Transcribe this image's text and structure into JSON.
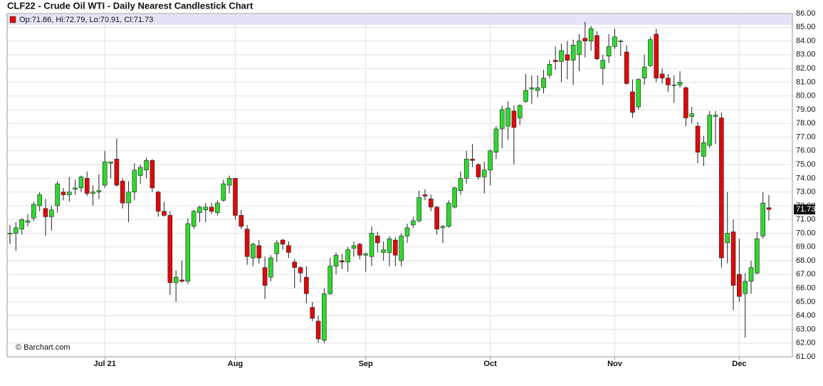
{
  "chart_data": {
    "type": "candlestick",
    "title": "CLF22 - Crude Oil WTI - Daily Nearest Candlestick Chart",
    "legend": "Op:71.86, Hi:72.79, Lo:70.91, Cl:71.73",
    "credit": "© Barchart.com",
    "up_color": "#2fd82f",
    "down_color": "#dd0a0a",
    "grid": true,
    "categories": [
      null,
      null,
      null,
      null,
      null,
      null,
      null,
      null,
      null,
      null,
      null,
      null,
      null,
      null,
      null,
      null,
      "Jul 21",
      null,
      null,
      null,
      null,
      null,
      null,
      null,
      null,
      null,
      null,
      null,
      null,
      null,
      null,
      null,
      null,
      null,
      null,
      null,
      null,
      null,
      "Aug",
      null,
      null,
      null,
      null,
      null,
      null,
      null,
      null,
      null,
      null,
      null,
      null,
      null,
      null,
      null,
      null,
      null,
      null,
      null,
      null,
      null,
      "Sep",
      null,
      null,
      null,
      null,
      null,
      null,
      null,
      null,
      null,
      null,
      null,
      null,
      null,
      null,
      null,
      null,
      null,
      null,
      null,
      null,
      "Oct",
      null,
      null,
      null,
      null,
      null,
      null,
      null,
      null,
      null,
      null,
      null,
      null,
      null,
      null,
      null,
      null,
      null,
      null,
      null,
      null,
      "Nov",
      null,
      null,
      null,
      null,
      null,
      null,
      null,
      null,
      null,
      null,
      null,
      null,
      null,
      null,
      null,
      null,
      null,
      null,
      null,
      null,
      "Dec",
      null,
      null,
      null,
      null,
      null
    ],
    "open": [
      70.0,
      70.0,
      70.3,
      70.8,
      71.1,
      72.0,
      71.8,
      71.2,
      72.0,
      73.0,
      72.8,
      73.2,
      73.3,
      74.0,
      72.9,
      73.0,
      73.5,
      75.1,
      75.4,
      73.8,
      72.2,
      73.0,
      74.2,
      74.6,
      75.3,
      73.0,
      71.6,
      71.3,
      66.4,
      66.6,
      66.5,
      70.5,
      71.5,
      71.7,
      71.9,
      71.5,
      72.4,
      73.5,
      74.0,
      71.3,
      70.3,
      68.2,
      69.1,
      67.5,
      66.8,
      68.5,
      69.5,
      69.1,
      67.9,
      67.5,
      66.8,
      64.6,
      63.6,
      62.2,
      65.6,
      67.6,
      68.0,
      67.9,
      68.9,
      69.2,
      68.4,
      68.3,
      69.8,
      68.6,
      68.6,
      69.5,
      68.0,
      69.8,
      70.6,
      70.9,
      72.8,
      72.5,
      71.9,
      70.4,
      70.5,
      71.9,
      73.1,
      74.0,
      75.4,
      75.0,
      74.1,
      74.6,
      75.9,
      77.6,
      77.8,
      78.9,
      78.4,
      79.6,
      80.5,
      80.4,
      80.6,
      81.5,
      82.6,
      82.5,
      83.0,
      82.6,
      83.0,
      84.2,
      84.0,
      84.4,
      82.0,
      82.9,
      83.6,
      84.0,
      83.2,
      80.3,
      79.2,
      81.3,
      82.2,
      84.5,
      81.6,
      81.3,
      80.8,
      80.8,
      80.6,
      78.5,
      77.8,
      75.6,
      76.4,
      78.5,
      78.4,
      69.3,
      70.1,
      67.0,
      65.6,
      66.5,
      67.1,
      69.8,
      71.86
    ],
    "high": [
      70.6,
      70.8,
      71.1,
      71.4,
      72.3,
      73.0,
      72.5,
      72.0,
      73.8,
      73.3,
      74.1,
      73.9,
      74.2,
      74.5,
      73.5,
      74.3,
      76.0,
      75.2,
      76.9,
      74.0,
      73.8,
      75.1,
      75.0,
      75.5,
      75.4,
      73.1,
      72.3,
      71.6,
      67.3,
      68.0,
      71.1,
      71.7,
      72.0,
      72.2,
      72.2,
      72.4,
      73.9,
      74.2,
      74.0,
      71.7,
      70.6,
      69.3,
      69.5,
      68.3,
      68.4,
      69.5,
      69.6,
      69.4,
      68.1,
      67.6,
      67.6,
      65.0,
      64.0,
      66.0,
      68.2,
      68.6,
      68.5,
      69.0,
      69.4,
      69.3,
      68.6,
      70.5,
      70.1,
      69.4,
      69.8,
      69.7,
      70.0,
      70.7,
      71.2,
      73.1,
      73.2,
      72.8,
      72.0,
      70.6,
      72.4,
      73.4,
      74.5,
      76.0,
      76.5,
      75.1,
      75.2,
      76.1,
      77.8,
      79.3,
      79.6,
      79.3,
      79.4,
      81.6,
      81.5,
      81.5,
      81.9,
      82.6,
      83.6,
      83.8,
      84.0,
      84.1,
      84.5,
      85.4,
      85.1,
      84.7,
      83.0,
      84.5,
      84.9,
      84.1,
      83.7,
      81.2,
      81.3,
      83.0,
      84.3,
      84.9,
      82.0,
      81.6,
      81.5,
      81.8,
      80.7,
      79.2,
      78.1,
      77.1,
      78.9,
      78.9,
      78.8,
      73.0,
      71.0,
      69.6,
      67.1,
      68.0,
      70.1,
      73.0,
      72.79
    ],
    "low": [
      69.2,
      68.7,
      69.9,
      70.5,
      70.9,
      71.6,
      69.8,
      70.2,
      71.5,
      72.4,
      72.3,
      72.8,
      73.0,
      72.7,
      72.0,
      72.5,
      73.3,
      74.0,
      73.4,
      71.8,
      70.8,
      72.4,
      73.6,
      74.0,
      73.0,
      71.2,
      71.2,
      65.5,
      65.0,
      66.4,
      66.3,
      70.3,
      70.8,
      70.8,
      71.4,
      71.3,
      72.3,
      72.9,
      71.0,
      70.3,
      67.7,
      67.6,
      67.8,
      65.2,
      66.5,
      67.9,
      68.8,
      68.2,
      66.0,
      66.4,
      64.9,
      63.6,
      62.0,
      62.0,
      65.5,
      67.0,
      67.4,
      67.2,
      68.3,
      68.1,
      67.2,
      67.6,
      68.6,
      68.0,
      67.6,
      67.6,
      67.6,
      69.3,
      70.4,
      70.8,
      72.4,
      71.6,
      69.9,
      69.3,
      70.4,
      71.8,
      72.8,
      73.6,
      74.8,
      73.9,
      72.9,
      73.5,
      75.4,
      76.2,
      76.8,
      75.0,
      77.9,
      79.5,
      79.4,
      79.9,
      80.2,
      81.3,
      81.9,
      81.0,
      81.2,
      80.8,
      81.8,
      82.8,
      83.3,
      82.6,
      80.8,
      82.4,
      83.4,
      82.9,
      80.8,
      78.4,
      79.0,
      80.8,
      82.1,
      81.0,
      80.9,
      80.3,
      79.5,
      80.6,
      77.8,
      78.0,
      75.1,
      74.9,
      76.2,
      76.5,
      67.5,
      67.8,
      64.4,
      65.0,
      62.4,
      65.6,
      67.0,
      69.6,
      70.91
    ],
    "close": [
      70.0,
      70.4,
      71.0,
      70.9,
      72.1,
      72.8,
      71.2,
      71.7,
      73.6,
      72.8,
      73.0,
      73.3,
      74.1,
      72.9,
      73.0,
      73.1,
      75.2,
      75.2,
      73.5,
      72.2,
      73.0,
      74.6,
      74.8,
      75.3,
      73.3,
      71.6,
      71.3,
      66.4,
      66.8,
      66.5,
      70.7,
      71.6,
      71.9,
      71.9,
      71.6,
      72.2,
      73.6,
      74.0,
      71.3,
      70.5,
      68.3,
      69.2,
      68.2,
      66.2,
      68.2,
      69.3,
      69.2,
      68.6,
      67.5,
      67.1,
      65.6,
      63.8,
      62.3,
      65.6,
      67.6,
      68.4,
      67.9,
      68.8,
      69.1,
      68.4,
      68.5,
      70.0,
      69.3,
      68.8,
      69.6,
      68.4,
      69.8,
      70.4,
      70.9,
      72.6,
      72.7,
      71.9,
      70.3,
      70.5,
      72.2,
      73.3,
      74.0,
      75.4,
      75.3,
      74.1,
      74.6,
      76.0,
      77.6,
      79.0,
      79.1,
      77.7,
      79.3,
      80.4,
      80.6,
      80.6,
      81.3,
      82.3,
      82.5,
      83.3,
      82.6,
      83.7,
      84.0,
      84.0,
      84.9,
      82.7,
      82.6,
      83.6,
      84.3,
      84.0,
      80.9,
      78.8,
      81.2,
      82.1,
      84.1,
      81.3,
      81.3,
      80.8,
      80.8,
      81.0,
      78.4,
      78.7,
      75.9,
      76.6,
      78.6,
      78.6,
      68.2,
      70.0,
      66.2,
      65.4,
      66.5,
      67.5,
      69.6,
      72.2,
      71.73
    ],
    "ylim": [
      61,
      86
    ],
    "yticks": [
      {
        "value": 61,
        "label": "61.00"
      },
      {
        "value": 62,
        "label": "62.00"
      },
      {
        "value": 63,
        "label": "63.00"
      },
      {
        "value": 64,
        "label": "64.00"
      },
      {
        "value": 65,
        "label": "65.00"
      },
      {
        "value": 66,
        "label": "66.00"
      },
      {
        "value": 67,
        "label": "67.00"
      },
      {
        "value": 68,
        "label": "68.00"
      },
      {
        "value": 69,
        "label": "69.00"
      },
      {
        "value": 70,
        "label": "70.00"
      },
      {
        "value": 71,
        "label": "71.00"
      },
      {
        "value": 72,
        "label": "72.00"
      },
      {
        "value": 73,
        "label": "73.00"
      },
      {
        "value": 74,
        "label": "74.00"
      },
      {
        "value": 75,
        "label": "75.00"
      },
      {
        "value": 76,
        "label": "76.00"
      },
      {
        "value": 77,
        "label": "77.00"
      },
      {
        "value": 78,
        "label": "78.00"
      },
      {
        "value": 79,
        "label": "79.00"
      },
      {
        "value": 80,
        "label": "80.00"
      },
      {
        "value": 81,
        "label": "81.00"
      },
      {
        "value": 82,
        "label": "82.00"
      },
      {
        "value": 83,
        "label": "83.00"
      },
      {
        "value": 84,
        "label": "84.00"
      },
      {
        "value": 85,
        "label": "85.00"
      },
      {
        "value": 86,
        "label": "86.00"
      }
    ]
  }
}
